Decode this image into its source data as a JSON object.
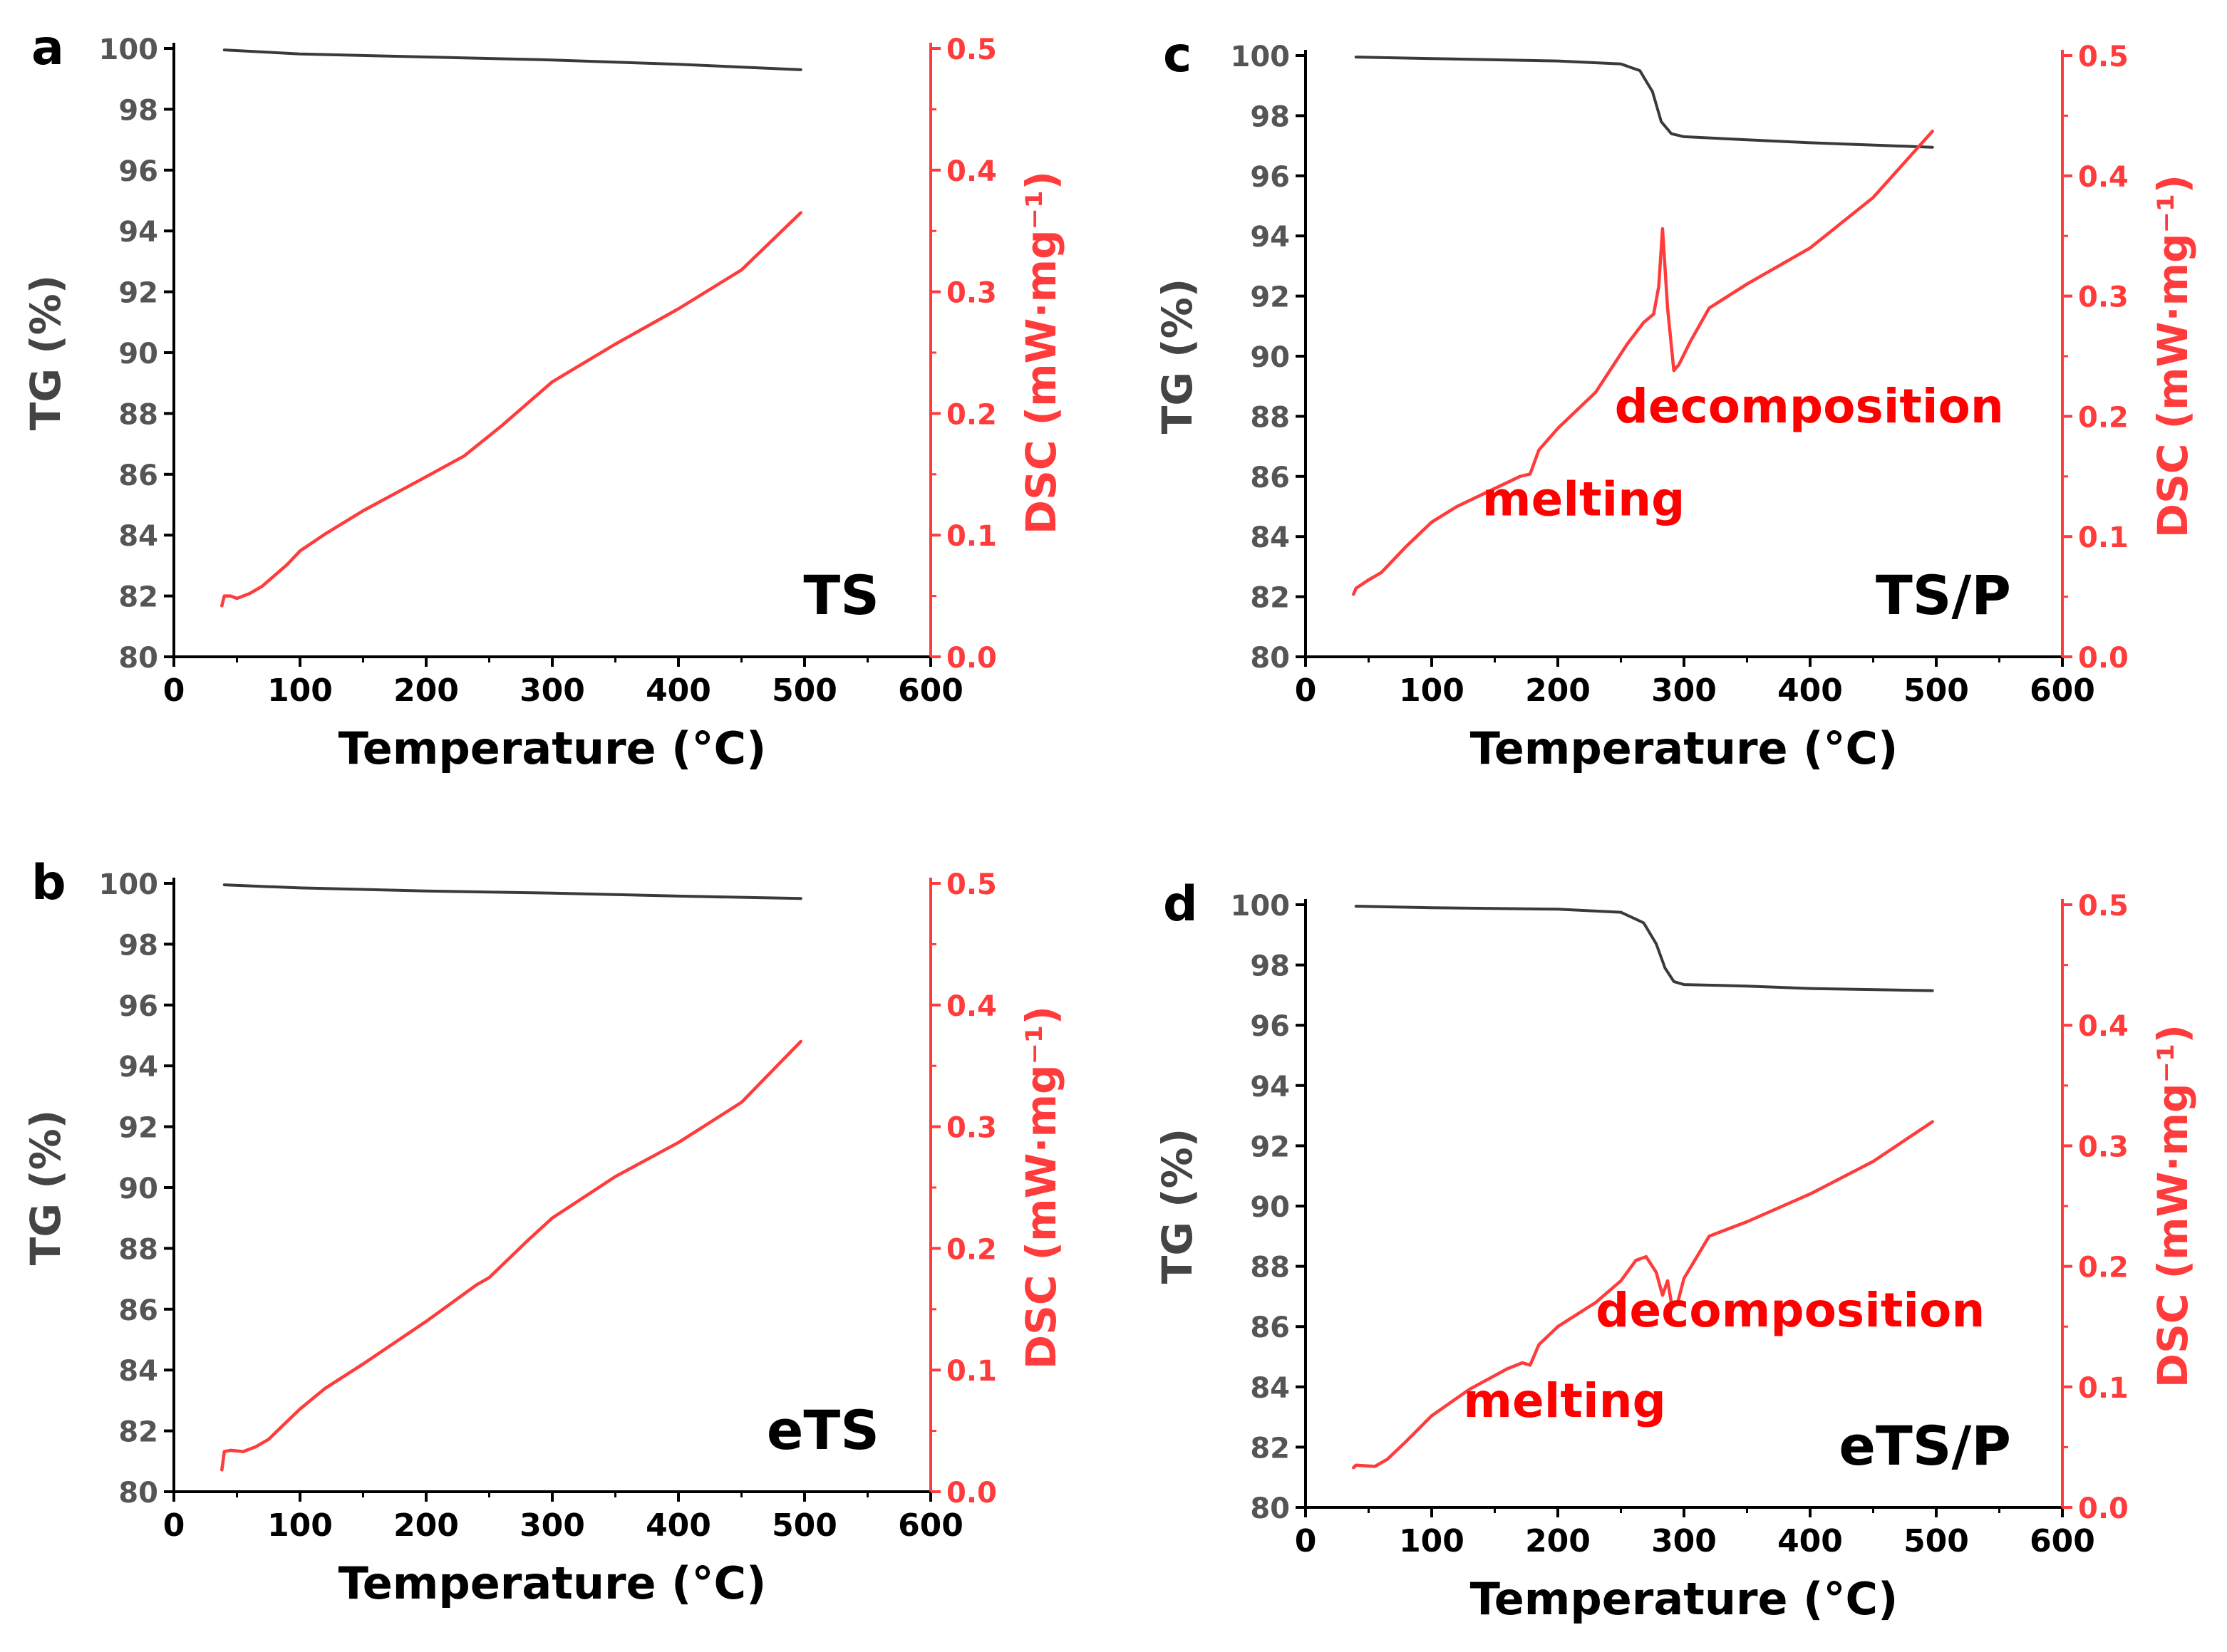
{
  "colors": {
    "tg": "#3a3a3a",
    "dsc": "#ff3b3b",
    "axis": "#000000",
    "annotation": "#ff0000"
  },
  "chart_data": [
    {
      "type": "line",
      "panel_label": "a",
      "sample_label": "TS",
      "xlabel": "Temperature (°C)",
      "ylabel_left": "TG (%)",
      "ylabel_right": "DSC (mW·mg⁻¹)",
      "xlim": [
        0,
        600
      ],
      "ylim_left": [
        80,
        100
      ],
      "ylim_right": [
        0.0,
        0.5
      ],
      "x_ticks": [
        "0",
        "100",
        "200",
        "300",
        "400",
        "500",
        "600"
      ],
      "left_ticks": [
        "80",
        "82",
        "84",
        "86",
        "88",
        "90",
        "92",
        "94",
        "96",
        "98",
        "100"
      ],
      "right_ticks": [
        "0.0",
        "0.1",
        "0.2",
        "0.3",
        "0.4",
        "0.5"
      ],
      "annotations": [],
      "series": [
        {
          "name": "TG",
          "axis": "left",
          "x": [
            40,
            100,
            200,
            300,
            400,
            497
          ],
          "y": [
            99.95,
            99.82,
            99.72,
            99.62,
            99.48,
            99.3
          ]
        },
        {
          "name": "DSC",
          "axis": "right",
          "x": [
            38,
            40,
            45,
            50,
            60,
            70,
            80,
            90,
            100,
            120,
            150,
            200,
            230,
            260,
            280,
            300,
            350,
            400,
            450,
            497
          ],
          "y": [
            0.042,
            0.05,
            0.05,
            0.048,
            0.052,
            0.058,
            0.067,
            0.076,
            0.087,
            0.101,
            0.12,
            0.148,
            0.165,
            0.19,
            0.208,
            0.226,
            0.257,
            0.286,
            0.318,
            0.365
          ]
        }
      ]
    },
    {
      "type": "line",
      "panel_label": "b",
      "sample_label": "eTS",
      "xlabel": "Temperature (°C)",
      "ylabel_left": "TG (%)",
      "ylabel_right": "DSC (mW·mg⁻¹)",
      "xlim": [
        0,
        600
      ],
      "ylim_left": [
        80,
        100
      ],
      "ylim_right": [
        0.0,
        0.5
      ],
      "x_ticks": [
        "0",
        "100",
        "200",
        "300",
        "400",
        "500",
        "600"
      ],
      "left_ticks": [
        "80",
        "82",
        "84",
        "86",
        "88",
        "90",
        "92",
        "94",
        "96",
        "98",
        "100"
      ],
      "right_ticks": [
        "0.0",
        "0.1",
        "0.2",
        "0.3",
        "0.4",
        "0.5"
      ],
      "annotations": [],
      "series": [
        {
          "name": "TG",
          "axis": "left",
          "x": [
            40,
            100,
            200,
            300,
            400,
            497
          ],
          "y": [
            99.95,
            99.85,
            99.75,
            99.68,
            99.58,
            99.5
          ]
        },
        {
          "name": "DSC",
          "axis": "right",
          "x": [
            38,
            40,
            45,
            55,
            65,
            75,
            85,
            100,
            120,
            150,
            200,
            240,
            250,
            280,
            300,
            350,
            400,
            450,
            497
          ],
          "y": [
            0.018,
            0.033,
            0.034,
            0.033,
            0.037,
            0.043,
            0.053,
            0.068,
            0.085,
            0.105,
            0.14,
            0.17,
            0.176,
            0.206,
            0.225,
            0.259,
            0.287,
            0.32,
            0.37
          ]
        }
      ]
    },
    {
      "type": "line",
      "panel_label": "c",
      "sample_label": "TS/P",
      "xlabel": "Temperature (°C)",
      "ylabel_left": "TG (%)",
      "ylabel_right": "DSC (mW·mg⁻¹)",
      "xlim": [
        0,
        600
      ],
      "ylim_left": [
        80,
        100
      ],
      "ylim_right": [
        0.0,
        0.5
      ],
      "x_ticks": [
        "0",
        "100",
        "200",
        "300",
        "400",
        "500",
        "600"
      ],
      "left_ticks": [
        "80",
        "82",
        "84",
        "86",
        "88",
        "90",
        "92",
        "94",
        "96",
        "98",
        "100"
      ],
      "right_ticks": [
        "0.0",
        "0.1",
        "0.2",
        "0.3",
        "0.4",
        "0.5"
      ],
      "annotations": [
        {
          "text": "melting",
          "x": 140,
          "y_left": 84.7
        },
        {
          "text": "decomposition",
          "x": 245,
          "y_left": 87.8
        }
      ],
      "series": [
        {
          "name": "TG",
          "axis": "left",
          "x": [
            40,
            100,
            200,
            250,
            265,
            275,
            282,
            290,
            300,
            350,
            400,
            497
          ],
          "y": [
            99.95,
            99.9,
            99.82,
            99.72,
            99.5,
            98.8,
            97.8,
            97.4,
            97.3,
            97.2,
            97.1,
            96.95
          ]
        },
        {
          "name": "DSC",
          "axis": "right",
          "x": [
            38,
            40,
            50,
            60,
            80,
            100,
            120,
            150,
            170,
            178,
            185,
            200,
            230,
            255,
            268,
            276,
            280,
            283,
            287,
            292,
            296,
            305,
            320,
            350,
            400,
            450,
            497
          ],
          "y": [
            0.052,
            0.057,
            0.064,
            0.07,
            0.092,
            0.112,
            0.125,
            0.14,
            0.15,
            0.152,
            0.172,
            0.19,
            0.22,
            0.26,
            0.278,
            0.285,
            0.308,
            0.356,
            0.29,
            0.238,
            0.243,
            0.262,
            0.29,
            0.31,
            0.34,
            0.382,
            0.437
          ]
        }
      ]
    },
    {
      "type": "line",
      "panel_label": "d",
      "sample_label": "eTS/P",
      "xlabel": "Temperature (°C)",
      "ylabel_left": "TG (%)",
      "ylabel_right": "DSC (mW·mg⁻¹)",
      "xlim": [
        0,
        600
      ],
      "ylim_left": [
        80,
        100
      ],
      "ylim_right": [
        0.0,
        0.5
      ],
      "x_ticks": [
        "0",
        "100",
        "200",
        "300",
        "400",
        "500",
        "600"
      ],
      "left_ticks": [
        "80",
        "82",
        "84",
        "86",
        "88",
        "90",
        "92",
        "94",
        "96",
        "98",
        "100"
      ],
      "right_ticks": [
        "0.0",
        "0.1",
        "0.2",
        "0.3",
        "0.4",
        "0.5"
      ],
      "annotations": [
        {
          "text": "melting",
          "x": 125,
          "y_left": 83.0
        },
        {
          "text": "decomposition",
          "x": 230,
          "y_left": 86.0
        }
      ],
      "series": [
        {
          "name": "TG",
          "axis": "left",
          "x": [
            40,
            100,
            200,
            250,
            268,
            278,
            285,
            292,
            300,
            350,
            400,
            497
          ],
          "y": [
            99.95,
            99.9,
            99.85,
            99.75,
            99.4,
            98.7,
            97.9,
            97.45,
            97.35,
            97.3,
            97.22,
            97.15
          ]
        },
        {
          "name": "DSC",
          "axis": "right",
          "x": [
            38,
            40,
            55,
            65,
            80,
            100,
            130,
            160,
            172,
            178,
            185,
            200,
            230,
            250,
            262,
            270,
            278,
            283,
            287,
            290,
            295,
            300,
            320,
            350,
            400,
            450,
            497
          ],
          "y": [
            0.033,
            0.035,
            0.034,
            0.04,
            0.055,
            0.076,
            0.098,
            0.115,
            0.12,
            0.118,
            0.135,
            0.15,
            0.17,
            0.188,
            0.205,
            0.208,
            0.195,
            0.176,
            0.188,
            0.17,
            0.17,
            0.19,
            0.225,
            0.237,
            0.26,
            0.287,
            0.32
          ]
        }
      ]
    }
  ]
}
